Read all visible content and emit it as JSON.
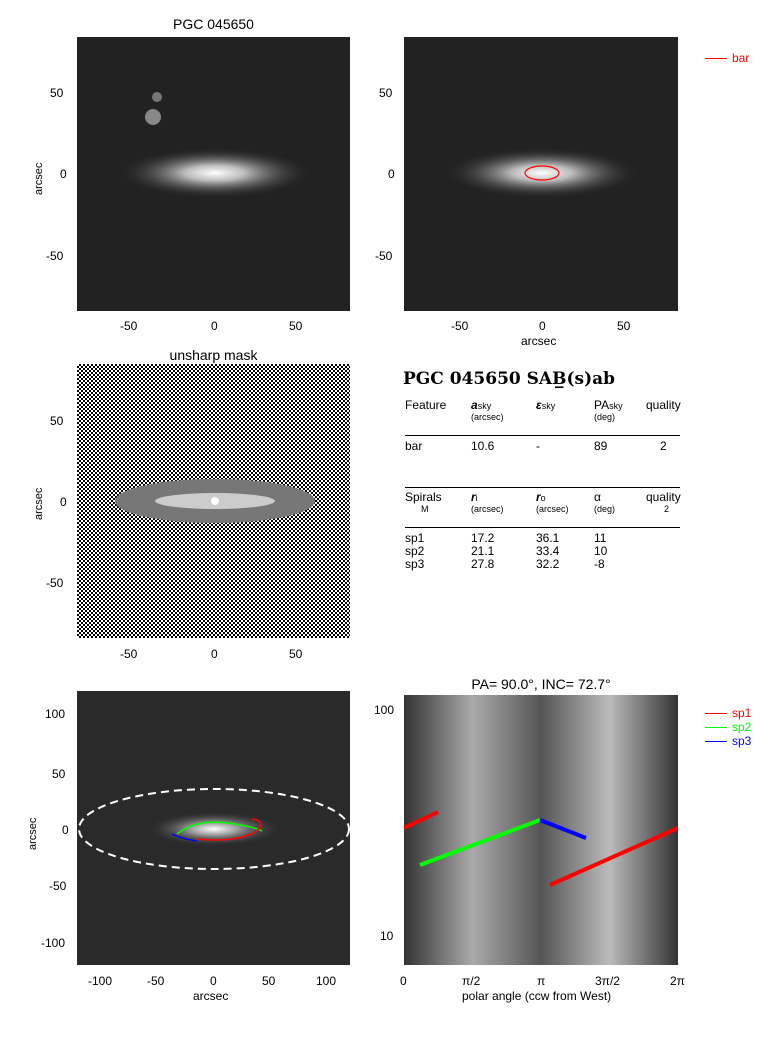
{
  "panels": {
    "p1": {
      "title": "PGC 045650",
      "ylabel": "arcsec"
    },
    "p2": {
      "xlabel": "arcsec"
    },
    "p3": {
      "title": "unsharp mask",
      "ylabel": "arcsec"
    },
    "p5": {
      "xlabel": "arcsec",
      "ylabel": "arcsec"
    },
    "p6": {
      "title": "PA=  90.0°, INC=  72.7°",
      "xlabel": "polar angle (ccw from West)"
    }
  },
  "ticks": {
    "p1x": [
      "-50",
      "0",
      "50"
    ],
    "p1y": [
      "50",
      "0",
      "-50"
    ],
    "p5x": [
      "-100",
      "-50",
      "0",
      "50",
      "100"
    ],
    "p5y": [
      "100",
      "50",
      "0",
      "-50",
      "-100"
    ],
    "p6x": [
      "0",
      "π/2",
      "π",
      "3π/2",
      "2π"
    ],
    "p6y": [
      "100",
      "10"
    ]
  },
  "legend_top": {
    "label": "bar",
    "color": "#ff0000"
  },
  "legend_bottom": [
    {
      "label": "sp1",
      "color": "#ff0000"
    },
    {
      "label": "sp2",
      "color": "#00ff00"
    },
    {
      "label": "sp3",
      "color": "#0000ff"
    }
  ],
  "table": {
    "header": "PGC 045650  SAB̲(s)ab",
    "feat_cols": [
      "Feature",
      "a",
      "sky",
      "(arcsec)",
      "ε",
      "sky",
      "PA",
      "sky",
      "(deg)",
      "quality"
    ],
    "bar_row": [
      "bar",
      "10.6",
      "-",
      "89",
      "2"
    ],
    "spiral_cols": [
      "Spirals",
      "M",
      "r",
      "i",
      "(arcsec)",
      "r",
      "o",
      "(arcsec)",
      "α",
      "(deg)",
      "quality",
      "2"
    ],
    "spirals": [
      [
        "sp1",
        "17.2",
        "36.1",
        "11"
      ],
      [
        "sp2",
        "21.1",
        "33.4",
        "10"
      ],
      [
        "sp3",
        "27.8",
        "32.2",
        "-8"
      ]
    ]
  }
}
